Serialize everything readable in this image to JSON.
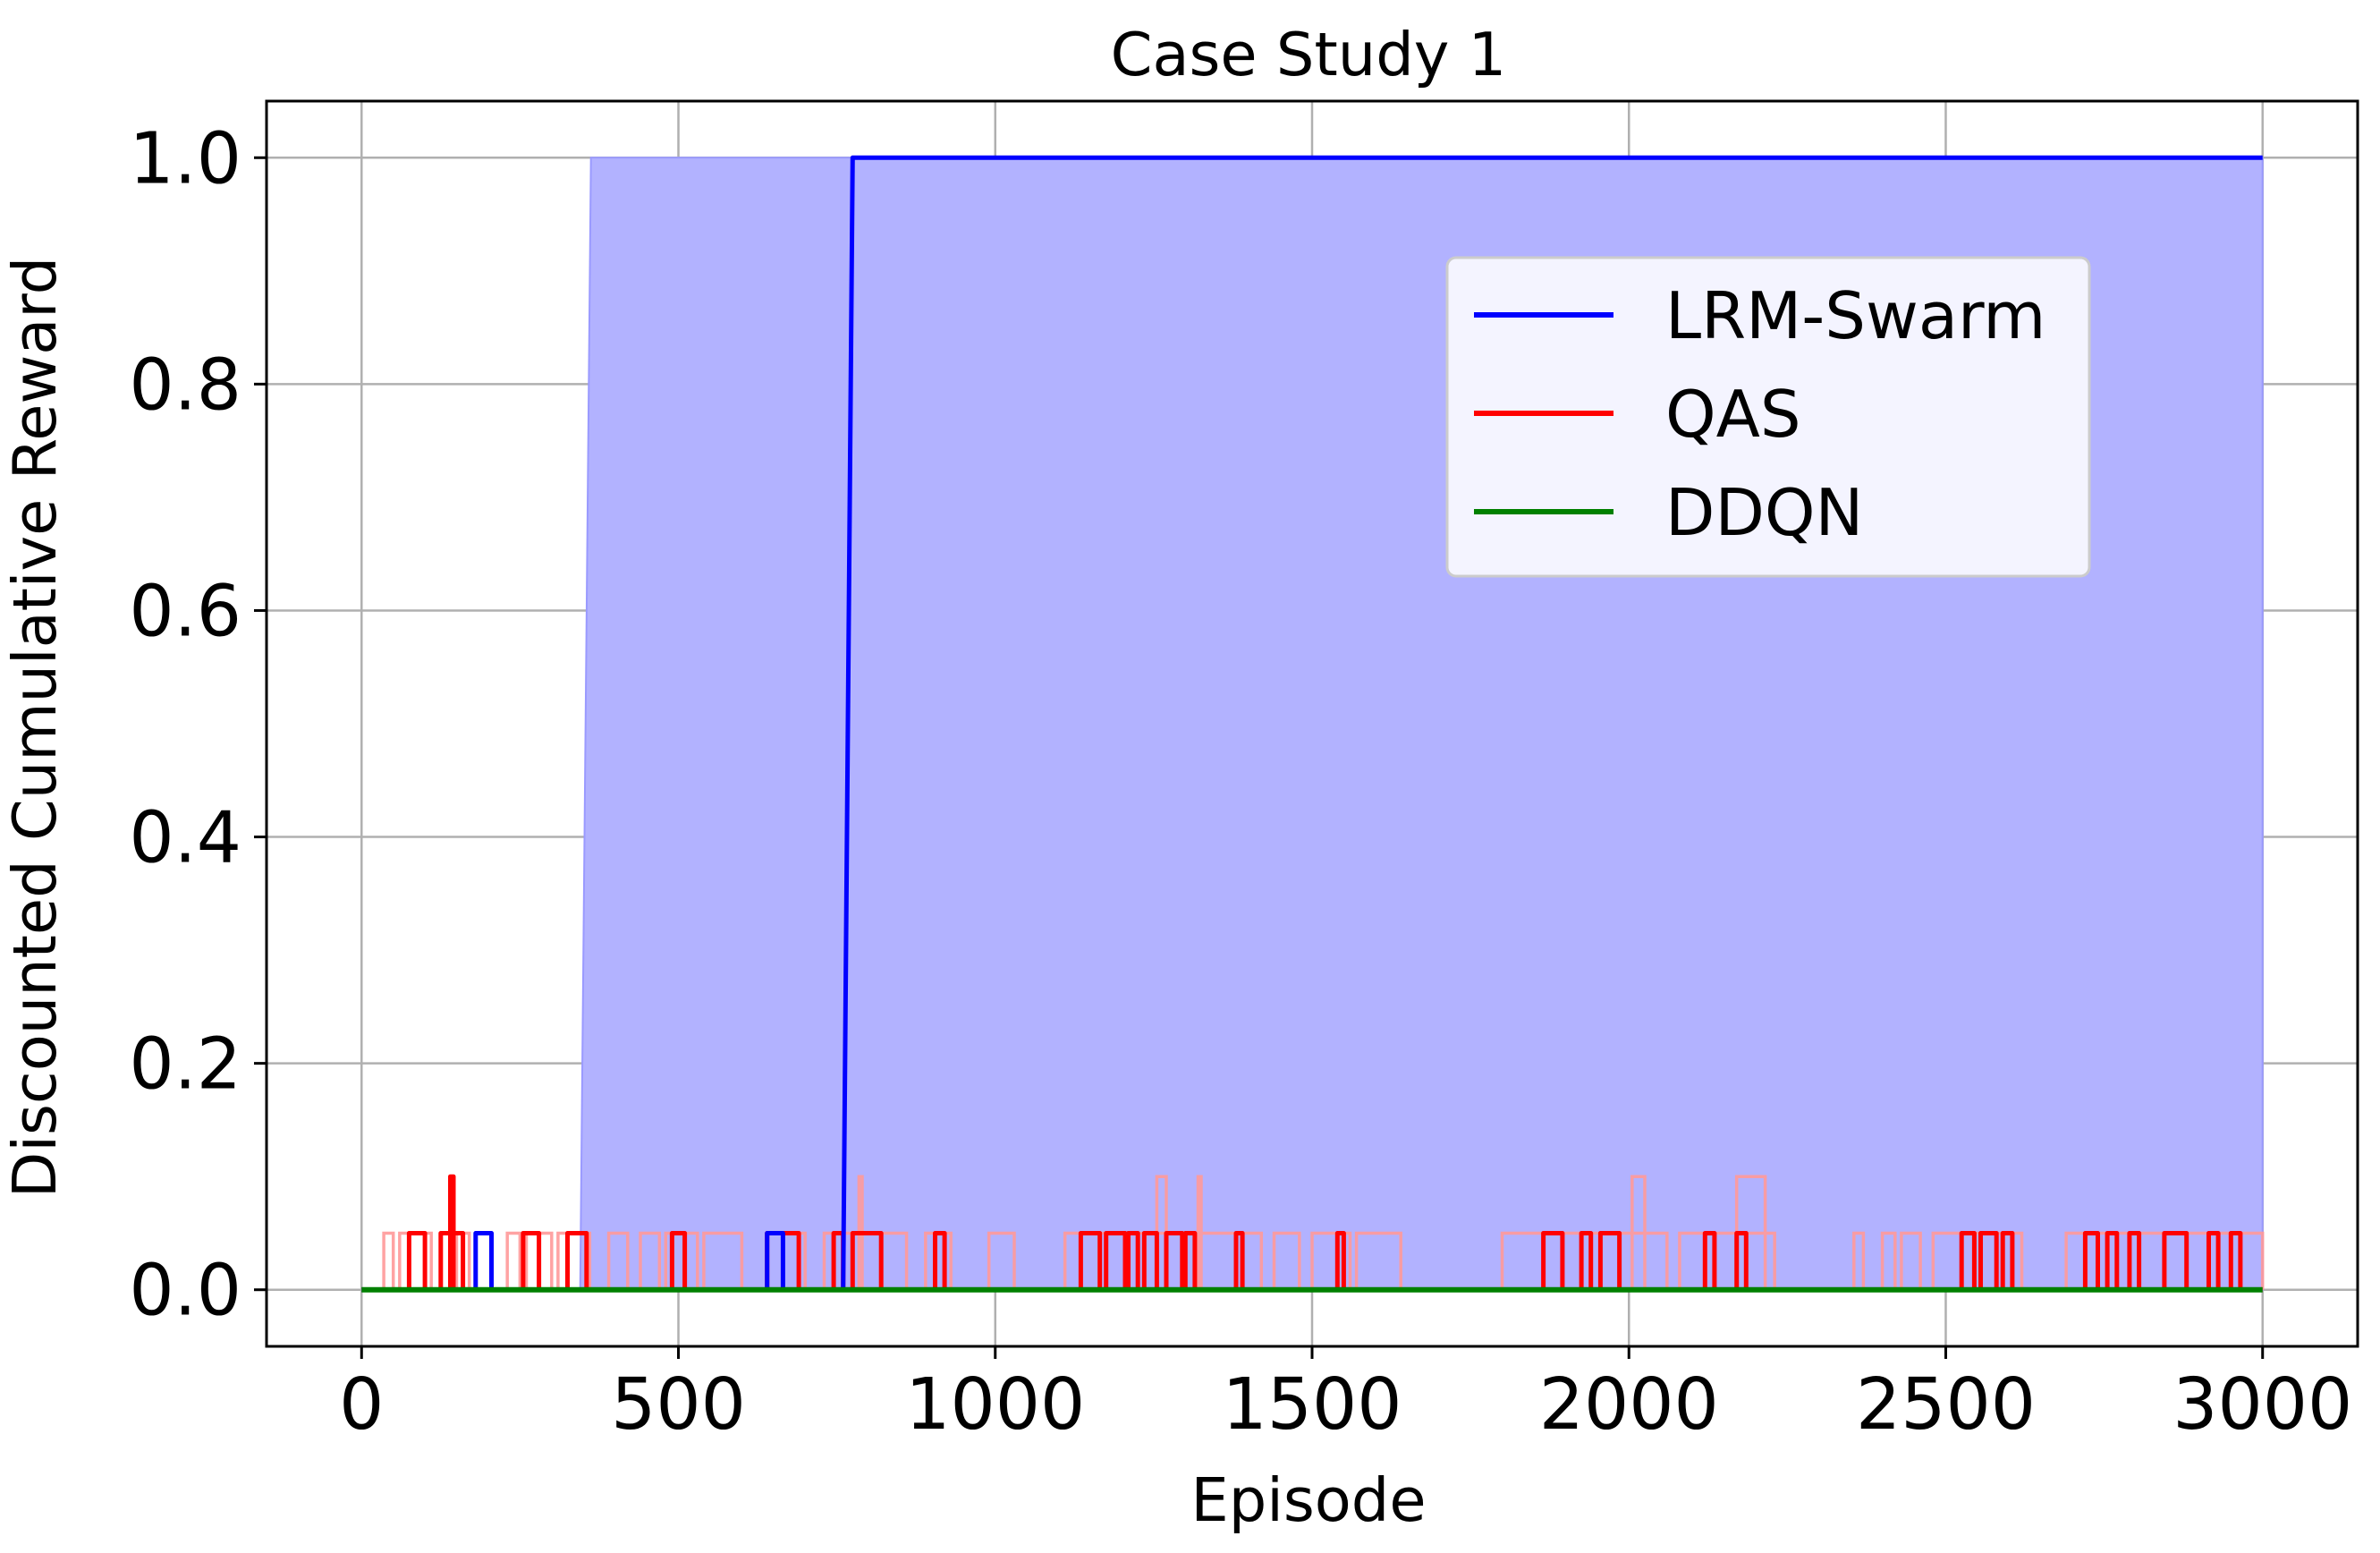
{
  "chart_data": {
    "type": "line",
    "title": "Case Study 1",
    "xlabel": "Episode",
    "ylabel": "Discounted Cumulative Reward",
    "xlim": [
      -150,
      3150
    ],
    "ylim": [
      -0.05,
      1.05
    ],
    "xticks": [
      0,
      500,
      1000,
      1500,
      2000,
      2500,
      3000
    ],
    "xtick_labels": [
      "0",
      "500",
      "1000",
      "1500",
      "2000",
      "2500",
      "3000"
    ],
    "yticks": [
      0.0,
      0.2,
      0.4,
      0.6,
      0.8,
      1.0
    ],
    "ytick_labels": [
      "0.0",
      "0.2",
      "0.4",
      "0.6",
      "0.8",
      "1.0"
    ],
    "grid": true,
    "legend_position": "upper-right",
    "series": [
      {
        "name": "LRM-Swarm",
        "color": "#0000ff",
        "x": [
          0,
          180,
          180,
          205,
          205,
          640,
          640,
          665,
          665,
          760,
          775,
          3000
        ],
        "y": [
          0,
          0,
          0.05,
          0.05,
          0,
          0,
          0.05,
          0.05,
          0,
          0,
          1.0,
          1.0
        ],
        "band": {
          "color": "#b2b2ff",
          "upper_x": [
            0,
            345,
            362,
            860,
            3000
          ],
          "upper_y": [
            0,
            0,
            1.0,
            1.0,
            1.0
          ],
          "lower_x": [
            0,
            842,
            860,
            3000
          ],
          "lower_y": [
            0,
            0,
            0,
            0
          ]
        }
      },
      {
        "name": "QAS",
        "color": "#ff0000",
        "pulses": [
          [
            75,
            100,
            0.05
          ],
          [
            125,
            160,
            0.05
          ],
          [
            140,
            145,
            0.1
          ],
          [
            255,
            280,
            0.05
          ],
          [
            325,
            355,
            0.05
          ],
          [
            490,
            510,
            0.05
          ],
          [
            640,
            690,
            0.05
          ],
          [
            745,
            760,
            0.05
          ],
          [
            775,
            820,
            0.05
          ],
          [
            905,
            920,
            0.05
          ],
          [
            1135,
            1165,
            0.05
          ],
          [
            1175,
            1205,
            0.05
          ],
          [
            1210,
            1225,
            0.05
          ],
          [
            1235,
            1255,
            0.05
          ],
          [
            1270,
            1295,
            0.05
          ],
          [
            1300,
            1315,
            0.05
          ],
          [
            1380,
            1390,
            0.05
          ],
          [
            1540,
            1550,
            0.05
          ],
          [
            1865,
            1895,
            0.05
          ],
          [
            1925,
            1940,
            0.05
          ],
          [
            1955,
            1985,
            0.05
          ],
          [
            2120,
            2135,
            0.05
          ],
          [
            2170,
            2185,
            0.05
          ],
          [
            2525,
            2545,
            0.05
          ],
          [
            2555,
            2580,
            0.05
          ],
          [
            2590,
            2605,
            0.05
          ],
          [
            2720,
            2740,
            0.05
          ],
          [
            2755,
            2770,
            0.05
          ],
          [
            2790,
            2805,
            0.05
          ],
          [
            2845,
            2880,
            0.05
          ],
          [
            2915,
            2930,
            0.05
          ],
          [
            2950,
            2965,
            0.05
          ]
        ],
        "band": {
          "color": "#ff9999",
          "pulses": [
            [
              35,
              50,
              0.05
            ],
            [
              60,
              110,
              0.05
            ],
            [
              150,
              170,
              0.05
            ],
            [
              230,
              250,
              0.05
            ],
            [
              260,
              300,
              0.05
            ],
            [
              310,
              360,
              0.05
            ],
            [
              390,
              420,
              0.05
            ],
            [
              440,
              470,
              0.05
            ],
            [
              480,
              530,
              0.05
            ],
            [
              540,
              600,
              0.05
            ],
            [
              640,
              700,
              0.05
            ],
            [
              730,
              860,
              0.05
            ],
            [
              785,
              790,
              0.1
            ],
            [
              890,
              930,
              0.05
            ],
            [
              990,
              1030,
              0.05
            ],
            [
              1110,
              1420,
              0.05
            ],
            [
              1255,
              1270,
              0.1
            ],
            [
              1320,
              1325,
              0.1
            ],
            [
              1440,
              1480,
              0.05
            ],
            [
              1500,
              1560,
              0.05
            ],
            [
              1570,
              1640,
              0.05
            ],
            [
              1800,
              2060,
              0.05
            ],
            [
              2005,
              2025,
              0.1
            ],
            [
              2080,
              2230,
              0.05
            ],
            [
              2170,
              2215,
              0.1
            ],
            [
              2355,
              2370,
              0.05
            ],
            [
              2400,
              2420,
              0.05
            ],
            [
              2430,
              2460,
              0.05
            ],
            [
              2480,
              2620,
              0.05
            ],
            [
              2690,
              3000,
              0.05
            ]
          ]
        }
      },
      {
        "name": "DDQN",
        "color": "#008000",
        "x": [
          0,
          3000
        ],
        "y": [
          0,
          0
        ]
      }
    ]
  }
}
